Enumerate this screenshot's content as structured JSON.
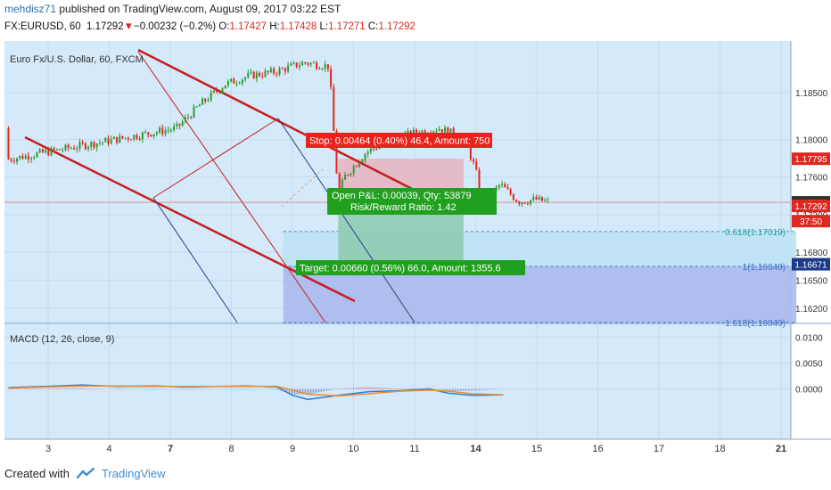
{
  "header": {
    "author": "mehdisz71",
    "published": " published on TradingView.com, August 09, 2017 03:22 EST",
    "symbol": "FX:EURUSD, 60",
    "last": "1.17292",
    "change": "−0.00232 (−0.2%)",
    "o_label": "O:",
    "o_value": "1.17427",
    "h_label": "H:",
    "h_value": "1.17428",
    "l_label": "L:",
    "l_value": "1.17271",
    "c_label": "C:",
    "c_value": "1.17292"
  },
  "footer": {
    "created": "Created with",
    "brand": "TradingView"
  },
  "colors": {
    "down": "#e0281e",
    "up": "#2e9a2e",
    "channel": "#c81e1e",
    "fib_blue": "#3d6fc9",
    "fib_teal": "#27a0a0"
  },
  "chart_data": [
    {
      "type": "candlestick",
      "title": "Euro Fx/U.S. Dollar, 60, FXCM",
      "x_tick_labels": [
        "3",
        "4",
        "7",
        "8",
        "9",
        "10",
        "11",
        "14",
        "15",
        "16",
        "17",
        "18",
        "21"
      ],
      "price_ticks": [
        "1.18500",
        "1.18000",
        "1.17600",
        "1.17200",
        "1.16800",
        "1.16500",
        "1.16200"
      ],
      "price_labels": [
        {
          "value": "1.17795",
          "color": "#e0281e"
        },
        {
          "value": "1.17331",
          "color": "#333333"
        },
        {
          "value": "1.17292",
          "color": "#e0281e"
        },
        {
          "value": "37:50",
          "color": "#e0281e"
        },
        {
          "value": "1.16671",
          "color": "#1d3a8a"
        }
      ],
      "ylim": [
        1.1605,
        1.1905
      ],
      "grid": true,
      "ohlc_close_path": [
        {
          "x": 2.1,
          "y": 1.1812
        },
        {
          "x": 2.5,
          "y": 1.1838
        },
        {
          "x": 2.9,
          "y": 1.1859
        },
        {
          "x": 3.3,
          "y": 1.1868
        },
        {
          "x": 3.7,
          "y": 1.1872
        },
        {
          "x": 4.2,
          "y": 1.1882
        },
        {
          "x": 4.6,
          "y": 1.1878
        },
        {
          "x": 4.75,
          "y": 1.174
        },
        {
          "x": 4.85,
          "y": 1.176
        },
        {
          "x": 5.2,
          "y": 1.1786
        },
        {
          "x": 5.6,
          "y": 1.18
        },
        {
          "x": 6.0,
          "y": 1.1807
        },
        {
          "x": 6.4,
          "y": 1.1812
        },
        {
          "x": 6.8,
          "y": 1.1802
        },
        {
          "x": 7.0,
          "y": 1.1768
        },
        {
          "x": 7.1,
          "y": 1.1729
        },
        {
          "x": 7.4,
          "y": 1.1752
        },
        {
          "x": 7.7,
          "y": 1.1734
        },
        {
          "x": 8.0,
          "y": 1.1736
        },
        {
          "x": 8.2,
          "y": 1.1733
        }
      ],
      "annotations": {
        "stop": "Stop: 0.00464 (0.40%) 46.4, Amount: 750",
        "pnl_1": "Open P&L: 0.00039, Qty: 53879",
        "pnl_2": "Risk/Reward Ratio: 1.42",
        "target": "Target: 0.00660 (0.56%) 66.0, Amount: 1355.6",
        "fib_0618": "0.618(1.17019)",
        "fib_1": "1(1.16648)",
        "fib_1618": "1.618(1.16049)"
      }
    },
    {
      "type": "line",
      "title": "MACD (12, 26, close, 9)",
      "y_tick_labels": [
        "0.0100",
        "0.0050",
        "0.0000"
      ],
      "ylim": [
        -0.0095,
        0.0125
      ],
      "series": [
        {
          "color": "#2b7fd6",
          "x": [
            0.1,
            0.7,
            1.3,
            1.9,
            2.5,
            3.0,
            3.5,
            4.0,
            4.5,
            4.75,
            5.0,
            5.5,
            6.0,
            6.5,
            7.0,
            7.3,
            7.7,
            8.2
          ],
          "values": [
            0.0003,
            0.0005,
            0.0008,
            0.0005,
            0.0006,
            0.0004,
            0.0005,
            0.0006,
            0.0004,
            -0.0012,
            -0.002,
            -0.0012,
            -0.0005,
            -0.0003,
            0.0,
            -0.0008,
            -0.0012,
            -0.0011
          ]
        },
        {
          "color": "#ee8a2c",
          "x": [
            0.1,
            0.7,
            1.3,
            1.9,
            2.5,
            3.0,
            3.5,
            4.0,
            4.5,
            4.75,
            5.0,
            5.5,
            6.0,
            6.5,
            7.0,
            7.3,
            7.7,
            8.2
          ],
          "values": [
            0.0002,
            0.0004,
            0.0006,
            0.0006,
            0.0005,
            0.0005,
            0.0005,
            0.0005,
            0.0005,
            -0.0002,
            -0.001,
            -0.0013,
            -0.0009,
            -0.0004,
            -0.0002,
            -0.0004,
            -0.0009,
            -0.0011
          ]
        }
      ]
    }
  ]
}
